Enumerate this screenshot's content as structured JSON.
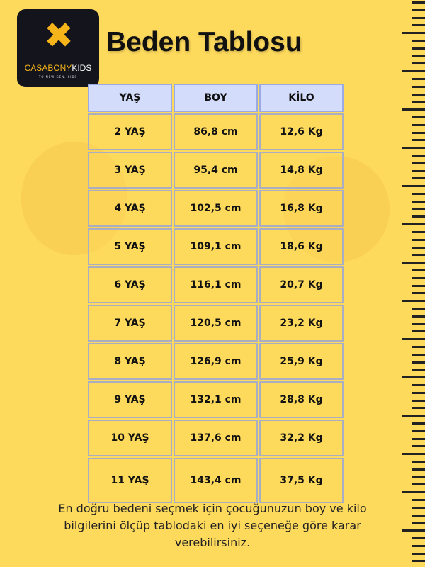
{
  "logo": {
    "brand_a": "CASABONY",
    "brand_b": "KIDS",
    "tagline": "TO NEW GEN. KIDS",
    "accent": "#f5b41a"
  },
  "title": "Beden Tablosu",
  "table": {
    "headers": [
      "YAŞ",
      "BOY",
      "KİLO"
    ],
    "rows": [
      [
        "2 YAŞ",
        "86,8 cm",
        "12,6 Kg"
      ],
      [
        "3 YAŞ",
        "95,4 cm",
        "14,8 Kg"
      ],
      [
        "4 YAŞ",
        "102,5 cm",
        "16,8 Kg"
      ],
      [
        "5 YAŞ",
        "109,1 cm",
        "18,6 Kg"
      ],
      [
        "6 YAŞ",
        "116,1 cm",
        "20,7 Kg"
      ],
      [
        "7 YAŞ",
        "120,5 cm",
        "23,2 Kg"
      ],
      [
        "8 YAŞ",
        "126,9 cm",
        "25,9 Kg"
      ],
      [
        "9 YAŞ",
        "132,1 cm",
        "28,8 Kg"
      ],
      [
        "10 YAŞ",
        "137,6 cm",
        "32,2 Kg"
      ],
      [
        "11 YAŞ",
        "143,4 cm",
        "37,5 Kg"
      ]
    ]
  },
  "note": "En doğru bedeni seçmek için çocuğunuzun boy ve kilo bilgilerini ölçüp  tablodaki en iyi seçeneğe göre karar verebilirsiniz."
}
